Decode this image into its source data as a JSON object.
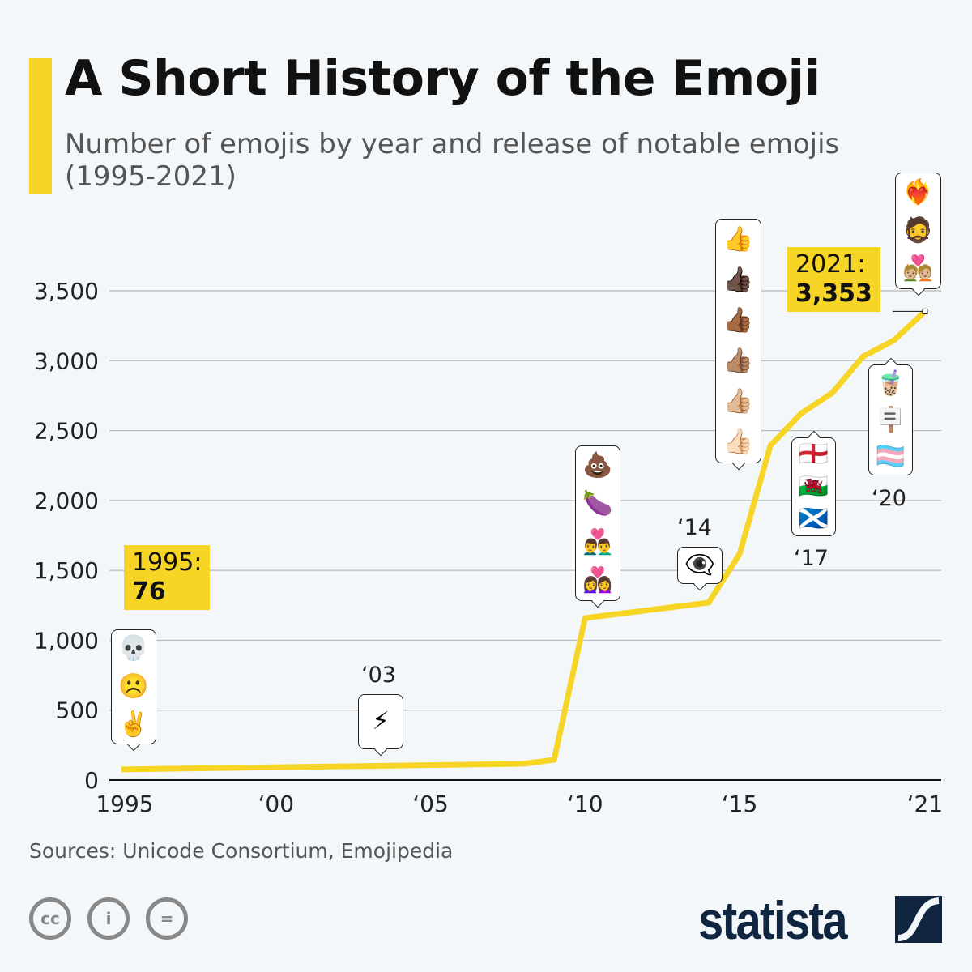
{
  "title": "A Short History of the Emoji",
  "subtitle": "Number of emojis by year and release of notable emojis (1995-2021)",
  "source": "Sources: Unicode Consortium, Emojipedia",
  "brand": "statista",
  "colors": {
    "line": "#f6d526",
    "brand": "#0f2540",
    "grid": "#b8b8b8"
  },
  "license_icons": [
    "cc-icon",
    "attribution-icon",
    "no-derivatives-icon"
  ],
  "chart_data": {
    "type": "line",
    "title": "A Short History of the Emoji",
    "subtitle": "Number of emojis by year and release of notable emojis (1995-2021)",
    "xlabel": "",
    "ylabel": "",
    "x": [
      1995,
      2008,
      2009,
      2010,
      2014,
      2015,
      2016,
      2017,
      2018,
      2019,
      2020,
      2021
    ],
    "values": [
      76,
      116,
      145,
      1159,
      1269,
      1616,
      2393,
      2624,
      2769,
      3030,
      3146,
      3353
    ],
    "ylim": [
      0,
      3500
    ],
    "yticks": [
      0,
      500,
      1000,
      1500,
      2000,
      2500,
      3000,
      3500
    ],
    "ytick_labels": [
      "0",
      "500",
      "1,000",
      "1,500",
      "2,000",
      "2,500",
      "3,000",
      "3,500"
    ],
    "xticks": [
      1995,
      2000,
      2005,
      2010,
      2015,
      2021
    ],
    "xtick_labels": [
      "1995",
      "‘00",
      "‘05",
      "‘10",
      "‘15",
      "‘21"
    ],
    "grid": true,
    "callouts": [
      {
        "year_label": "1995:",
        "value_label": "76"
      },
      {
        "year_label": "2021:",
        "value_label": "3,353"
      }
    ],
    "annotations": [
      {
        "label": "",
        "emojis": [
          "💀",
          "☹️",
          "✌️"
        ]
      },
      {
        "label": "‘03",
        "emojis": [
          "⚡"
        ]
      },
      {
        "label": "",
        "emojis": [
          "💩",
          "🍆",
          "👨‍❤️‍👨",
          "👩‍❤️‍👩"
        ]
      },
      {
        "label": "‘14",
        "emojis": [
          "👁️‍🗨️"
        ]
      },
      {
        "label": "",
        "emojis": [
          "👍",
          "👍🏿",
          "👍🏾",
          "👍🏽",
          "👍🏼",
          "👍🏻"
        ]
      },
      {
        "label": "‘17",
        "emojis": [
          "🏴󠁧󠁢󠁥󠁮󠁧󠁿",
          "🏴󠁧󠁢󠁷󠁬󠁳󠁿",
          "🏴󠁧󠁢󠁳󠁣󠁴󠁿"
        ]
      },
      {
        "label": "‘20",
        "emojis": [
          "🧋",
          "🪧",
          "🏳️‍⚧️"
        ]
      },
      {
        "label": "",
        "emojis": [
          "❤️‍🔥",
          "🧔",
          "💑🏼"
        ]
      }
    ]
  }
}
